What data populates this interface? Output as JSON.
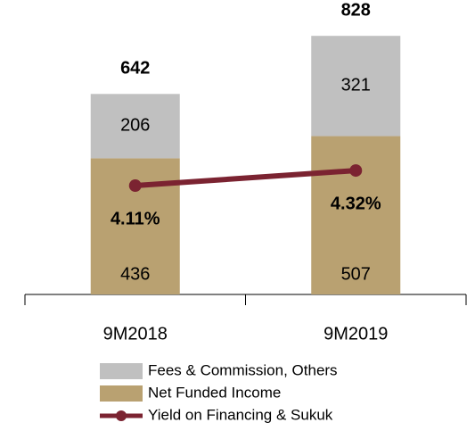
{
  "chart_data": {
    "type": "bar",
    "categories": [
      "9M2018",
      "9M2019"
    ],
    "series": [
      {
        "name": "Net Funded Income",
        "color": "#b9a171",
        "values": [
          436,
          507
        ]
      },
      {
        "name": "Fees & Commission, Others",
        "color": "#c0c0c0",
        "values": [
          206,
          321
        ]
      },
      {
        "name": "Yield on Financing & Sukuk",
        "color": "#7b2331",
        "type": "line",
        "axis": "y2",
        "values": [
          4.11,
          4.32
        ],
        "value_labels": [
          "4.11%",
          "4.32%"
        ]
      }
    ],
    "totals": [
      642,
      828
    ],
    "stacked": true,
    "ylim": [
      0,
      900
    ],
    "y2lim": [
      2.6,
      6.5
    ]
  }
}
